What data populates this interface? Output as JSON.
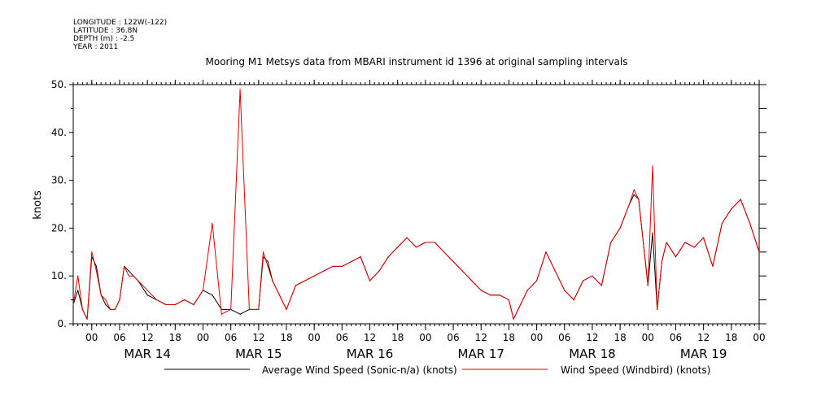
{
  "meta": {
    "longitude": "LONGITUDE : 122W(-122)",
    "latitude": "LATITUDE : 36.8N",
    "depth": "DEPTH (m) : -2.5",
    "year": "YEAR : 2011"
  },
  "chart_data": {
    "type": "line",
    "title": "Mooring M1 Metsys data from MBARI instrument id 1396 at original sampling intervals",
    "xlabel": "",
    "ylabel": "knots",
    "ylim": [
      0,
      50
    ],
    "yticks": [
      0,
      10,
      20,
      30,
      40,
      50
    ],
    "ytick_labels": [
      "0.",
      "10.",
      "20.",
      "30.",
      "40.",
      "50."
    ],
    "xlim": [
      "2011-03-13T20:00",
      "2011-03-20T00:00"
    ],
    "x_hour_labels": [
      {
        "t": "2011-03-14T00:00",
        "label": "00"
      },
      {
        "t": "2011-03-14T06:00",
        "label": "06"
      },
      {
        "t": "2011-03-14T12:00",
        "label": "12"
      },
      {
        "t": "2011-03-14T18:00",
        "label": "18"
      },
      {
        "t": "2011-03-15T00:00",
        "label": "00"
      },
      {
        "t": "2011-03-15T06:00",
        "label": "06"
      },
      {
        "t": "2011-03-15T12:00",
        "label": "12"
      },
      {
        "t": "2011-03-15T18:00",
        "label": "18"
      },
      {
        "t": "2011-03-16T00:00",
        "label": "00"
      },
      {
        "t": "2011-03-16T06:00",
        "label": "06"
      },
      {
        "t": "2011-03-16T12:00",
        "label": "12"
      },
      {
        "t": "2011-03-16T18:00",
        "label": "18"
      },
      {
        "t": "2011-03-17T00:00",
        "label": "00"
      },
      {
        "t": "2011-03-17T06:00",
        "label": "06"
      },
      {
        "t": "2011-03-17T12:00",
        "label": "12"
      },
      {
        "t": "2011-03-17T18:00",
        "label": "18"
      },
      {
        "t": "2011-03-18T00:00",
        "label": "00"
      },
      {
        "t": "2011-03-18T06:00",
        "label": "06"
      },
      {
        "t": "2011-03-18T12:00",
        "label": "12"
      },
      {
        "t": "2011-03-18T18:00",
        "label": "18"
      },
      {
        "t": "2011-03-19T00:00",
        "label": "00"
      },
      {
        "t": "2011-03-19T06:00",
        "label": "06"
      },
      {
        "t": "2011-03-19T12:00",
        "label": "12"
      },
      {
        "t": "2011-03-19T18:00",
        "label": "18"
      },
      {
        "t": "2011-03-20T00:00",
        "label": "00"
      }
    ],
    "x_day_labels": [
      {
        "t": "2011-03-14T12:00",
        "label": "MAR 14"
      },
      {
        "t": "2011-03-15T12:00",
        "label": "MAR 15"
      },
      {
        "t": "2011-03-16T12:00",
        "label": "MAR 16"
      },
      {
        "t": "2011-03-17T12:00",
        "label": "MAR 17"
      },
      {
        "t": "2011-03-18T12:00",
        "label": "MAR 18"
      },
      {
        "t": "2011-03-19T12:00",
        "label": "MAR 19"
      }
    ],
    "legend_position": "bottom",
    "series": [
      {
        "name": "Average Wind Speed (Sonic-n/a) (knots)",
        "color": "#000000",
        "x": [
          "2011-03-13T20:00",
          "2011-03-13T21:00",
          "2011-03-13T22:00",
          "2011-03-13T23:00",
          "2011-03-14T00:00",
          "2011-03-14T01:00",
          "2011-03-14T02:00",
          "2011-03-14T03:00",
          "2011-03-14T04:00",
          "2011-03-14T05:00",
          "2011-03-14T06:00",
          "2011-03-14T07:00",
          "2011-03-14T08:00",
          "2011-03-14T09:00",
          "2011-03-14T10:00",
          "2011-03-14T12:00",
          "2011-03-14T14:00",
          "2011-03-14T16:00",
          "2011-03-14T18:00",
          "2011-03-14T20:00",
          "2011-03-14T22:00",
          "2011-03-15T00:00",
          "2011-03-15T02:00",
          "2011-03-15T04:00",
          "2011-03-15T06:00",
          "2011-03-15T08:00",
          "2011-03-15T10:00",
          "2011-03-15T12:00",
          "2011-03-15T13:00",
          "2011-03-15T14:00",
          "2011-03-15T15:00",
          "2011-03-15T16:00",
          "2011-03-15T18:00",
          "2011-03-15T20:00",
          "2011-03-15T22:00",
          "2011-03-16T00:00",
          "2011-03-16T02:00",
          "2011-03-16T04:00",
          "2011-03-16T06:00",
          "2011-03-16T08:00",
          "2011-03-16T10:00",
          "2011-03-16T12:00",
          "2011-03-16T14:00",
          "2011-03-16T16:00",
          "2011-03-16T18:00",
          "2011-03-16T20:00",
          "2011-03-16T22:00",
          "2011-03-17T00:00",
          "2011-03-17T02:00",
          "2011-03-17T04:00",
          "2011-03-17T06:00",
          "2011-03-17T08:00",
          "2011-03-17T10:00",
          "2011-03-17T12:00",
          "2011-03-17T14:00",
          "2011-03-17T16:00",
          "2011-03-17T18:00",
          "2011-03-17T19:00",
          "2011-03-17T20:00",
          "2011-03-17T22:00",
          "2011-03-18T00:00",
          "2011-03-18T02:00",
          "2011-03-18T04:00",
          "2011-03-18T06:00",
          "2011-03-18T08:00",
          "2011-03-18T10:00",
          "2011-03-18T12:00",
          "2011-03-18T14:00",
          "2011-03-18T16:00",
          "2011-03-18T18:00",
          "2011-03-18T20:00",
          "2011-03-18T21:00",
          "2011-03-18T22:00",
          "2011-03-19T00:00",
          "2011-03-19T01:00",
          "2011-03-19T02:00",
          "2011-03-19T03:00",
          "2011-03-19T04:00",
          "2011-03-19T06:00",
          "2011-03-19T08:00",
          "2011-03-19T10:00",
          "2011-03-19T12:00",
          "2011-03-19T14:00",
          "2011-03-19T16:00",
          "2011-03-19T18:00",
          "2011-03-19T20:00",
          "2011-03-19T22:00",
          "2011-03-20T00:00"
        ],
        "y": [
          4,
          7,
          3,
          1,
          14,
          12,
          6,
          4,
          3,
          3,
          5,
          12,
          11,
          10,
          9,
          6,
          5,
          4,
          4,
          5,
          4,
          7,
          6,
          3,
          3,
          2,
          3,
          3,
          14,
          13,
          9,
          7,
          3,
          8,
          9,
          10,
          11,
          12,
          12,
          13,
          14,
          9,
          11,
          14,
          16,
          18,
          16,
          17,
          17,
          15,
          13,
          11,
          9,
          7,
          6,
          6,
          5,
          1,
          3,
          7,
          9,
          15,
          11,
          7,
          5,
          9,
          10,
          8,
          17,
          20,
          25,
          27,
          26,
          8,
          19,
          3,
          13,
          17,
          14,
          17,
          16,
          18,
          12,
          21,
          24,
          26,
          21,
          15
        ]
      },
      {
        "name": "Wind Speed (Windbird) (knots)",
        "color": "#dd0000",
        "x": [
          "2011-03-13T20:00",
          "2011-03-13T21:00",
          "2011-03-13T22:00",
          "2011-03-13T23:00",
          "2011-03-14T00:00",
          "2011-03-14T01:00",
          "2011-03-14T02:00",
          "2011-03-14T03:00",
          "2011-03-14T04:00",
          "2011-03-14T05:00",
          "2011-03-14T06:00",
          "2011-03-14T07:00",
          "2011-03-14T08:00",
          "2011-03-14T09:00",
          "2011-03-14T10:00",
          "2011-03-14T12:00",
          "2011-03-14T14:00",
          "2011-03-14T16:00",
          "2011-03-14T18:00",
          "2011-03-14T20:00",
          "2011-03-14T22:00",
          "2011-03-15T00:00",
          "2011-03-15T02:00",
          "2011-03-15T04:00",
          "2011-03-15T06:00",
          "2011-03-15T08:00",
          "2011-03-15T10:00",
          "2011-03-15T12:00",
          "2011-03-15T13:00",
          "2011-03-15T14:00",
          "2011-03-15T15:00",
          "2011-03-15T16:00",
          "2011-03-15T18:00",
          "2011-03-15T20:00",
          "2011-03-15T22:00",
          "2011-03-16T00:00",
          "2011-03-16T02:00",
          "2011-03-16T04:00",
          "2011-03-16T06:00",
          "2011-03-16T08:00",
          "2011-03-16T10:00",
          "2011-03-16T12:00",
          "2011-03-16T14:00",
          "2011-03-16T16:00",
          "2011-03-16T18:00",
          "2011-03-16T20:00",
          "2011-03-16T22:00",
          "2011-03-17T00:00",
          "2011-03-17T02:00",
          "2011-03-17T04:00",
          "2011-03-17T06:00",
          "2011-03-17T08:00",
          "2011-03-17T10:00",
          "2011-03-17T12:00",
          "2011-03-17T14:00",
          "2011-03-17T16:00",
          "2011-03-17T18:00",
          "2011-03-17T19:00",
          "2011-03-17T20:00",
          "2011-03-17T22:00",
          "2011-03-18T00:00",
          "2011-03-18T02:00",
          "2011-03-18T04:00",
          "2011-03-18T06:00",
          "2011-03-18T08:00",
          "2011-03-18T10:00",
          "2011-03-18T12:00",
          "2011-03-18T14:00",
          "2011-03-18T16:00",
          "2011-03-18T18:00",
          "2011-03-18T20:00",
          "2011-03-18T21:00",
          "2011-03-18T22:00",
          "2011-03-19T00:00",
          "2011-03-19T01:00",
          "2011-03-19T02:00",
          "2011-03-19T03:00",
          "2011-03-19T04:00",
          "2011-03-19T06:00",
          "2011-03-19T08:00",
          "2011-03-19T10:00",
          "2011-03-19T12:00",
          "2011-03-19T14:00",
          "2011-03-19T16:00",
          "2011-03-19T18:00",
          "2011-03-19T20:00",
          "2011-03-19T22:00",
          "2011-03-20T00:00"
        ],
        "y": [
          4,
          10,
          3,
          1,
          15,
          11,
          6,
          5,
          3,
          3,
          5,
          12,
          10,
          10,
          9,
          7,
          5,
          4,
          4,
          5,
          4,
          7,
          21,
          2,
          3,
          49,
          3,
          3,
          15,
          12,
          9,
          7,
          3,
          8,
          9,
          10,
          11,
          12,
          12,
          13,
          14,
          9,
          11,
          14,
          16,
          18,
          16,
          17,
          17,
          15,
          13,
          11,
          9,
          7,
          6,
          6,
          5,
          1,
          3,
          7,
          9,
          15,
          11,
          7,
          5,
          9,
          10,
          8,
          17,
          20,
          25,
          28,
          26,
          8,
          33,
          3,
          13,
          17,
          14,
          17,
          16,
          18,
          12,
          21,
          24,
          26,
          21,
          15
        ]
      }
    ]
  }
}
